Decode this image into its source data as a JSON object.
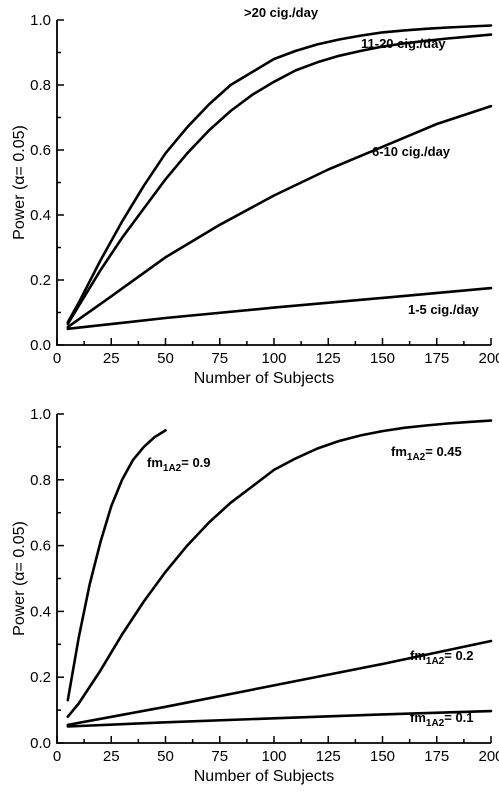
{
  "chart_data": [
    {
      "type": "line",
      "xlabel": "Number of Subjects",
      "ylabel": "Power (α= 0.05)",
      "xlim": [
        0,
        200
      ],
      "ylim": [
        0.0,
        1.0
      ],
      "x_ticks": [
        "0",
        "25",
        "50",
        "75",
        "100",
        "125",
        "150",
        "175",
        "200"
      ],
      "y_ticks": [
        "0.0",
        "0.2",
        "0.4",
        "0.6",
        "0.8",
        "1.0"
      ],
      "grid": false,
      "series": [
        {
          "name": ">20 cig./day",
          "label": {
            "text": ">20 cig./day"
          },
          "x": [
            5,
            10,
            20,
            30,
            40,
            50,
            60,
            70,
            80,
            90,
            100,
            110,
            120,
            130,
            140,
            150,
            160,
            170,
            180,
            190,
            200
          ],
          "y": [
            0.07,
            0.13,
            0.26,
            0.38,
            0.49,
            0.59,
            0.67,
            0.74,
            0.8,
            0.84,
            0.88,
            0.905,
            0.925,
            0.94,
            0.952,
            0.962,
            0.968,
            0.973,
            0.977,
            0.98,
            0.983
          ]
        },
        {
          "name": "11-20 cig./day",
          "label": {
            "text": "11-20 cig./day"
          },
          "x": [
            5,
            10,
            20,
            30,
            40,
            50,
            60,
            70,
            80,
            90,
            100,
            110,
            120,
            130,
            140,
            150,
            160,
            170,
            180,
            190,
            200
          ],
          "y": [
            0.065,
            0.12,
            0.23,
            0.33,
            0.42,
            0.51,
            0.59,
            0.66,
            0.72,
            0.77,
            0.81,
            0.845,
            0.87,
            0.89,
            0.905,
            0.918,
            0.928,
            0.936,
            0.943,
            0.949,
            0.955
          ]
        },
        {
          "name": "6-10 cig./day",
          "label": {
            "text": "6-10 cig./day"
          },
          "x": [
            5,
            25,
            50,
            75,
            100,
            125,
            150,
            175,
            200
          ],
          "y": [
            0.055,
            0.15,
            0.27,
            0.37,
            0.46,
            0.54,
            0.61,
            0.68,
            0.735
          ]
        },
        {
          "name": "1-5 cig./day",
          "label": {
            "text": "1-5 cig./day"
          },
          "x": [
            5,
            50,
            100,
            150,
            200
          ],
          "y": [
            0.05,
            0.083,
            0.115,
            0.145,
            0.175
          ]
        }
      ]
    },
    {
      "type": "line",
      "xlabel": "Number of Subjects",
      "ylabel": "Power (α= 0.05)",
      "xlim": [
        0,
        200
      ],
      "ylim": [
        0.0,
        1.0
      ],
      "x_ticks": [
        "0",
        "25",
        "50",
        "75",
        "100",
        "125",
        "150",
        "175",
        "200"
      ],
      "y_ticks": [
        "0.0",
        "0.2",
        "0.4",
        "0.6",
        "0.8",
        "1.0"
      ],
      "grid": false,
      "series": [
        {
          "name": "fm1A2= 0.9",
          "label": {
            "prefix": "fm",
            "sub": "1A2",
            "suffix": "= 0.9"
          },
          "x": [
            5,
            10,
            15,
            20,
            25,
            30,
            35,
            40,
            45,
            50
          ],
          "y": [
            0.13,
            0.32,
            0.48,
            0.61,
            0.72,
            0.8,
            0.86,
            0.9,
            0.93,
            0.95
          ]
        },
        {
          "name": "fm1A2= 0.45",
          "label": {
            "prefix": "fm",
            "sub": "1A2",
            "suffix": "= 0.45"
          },
          "x": [
            5,
            10,
            20,
            30,
            40,
            50,
            60,
            70,
            80,
            90,
            100,
            110,
            120,
            130,
            140,
            150,
            160,
            170,
            180,
            190,
            200
          ],
          "y": [
            0.08,
            0.12,
            0.22,
            0.33,
            0.43,
            0.52,
            0.6,
            0.67,
            0.73,
            0.78,
            0.83,
            0.865,
            0.895,
            0.918,
            0.935,
            0.948,
            0.958,
            0.965,
            0.971,
            0.976,
            0.98
          ]
        },
        {
          "name": "fm1A2= 0.2",
          "label": {
            "prefix": "fm",
            "sub": "1A2",
            "suffix": "= 0.2"
          },
          "x": [
            5,
            50,
            100,
            150,
            200
          ],
          "y": [
            0.055,
            0.11,
            0.175,
            0.24,
            0.31
          ]
        },
        {
          "name": "fm1A2= 0.1",
          "label": {
            "prefix": "fm",
            "sub": "1A2",
            "suffix": "= 0.1"
          },
          "x": [
            5,
            50,
            100,
            150,
            200
          ],
          "y": [
            0.05,
            0.063,
            0.075,
            0.087,
            0.097
          ]
        }
      ]
    }
  ]
}
